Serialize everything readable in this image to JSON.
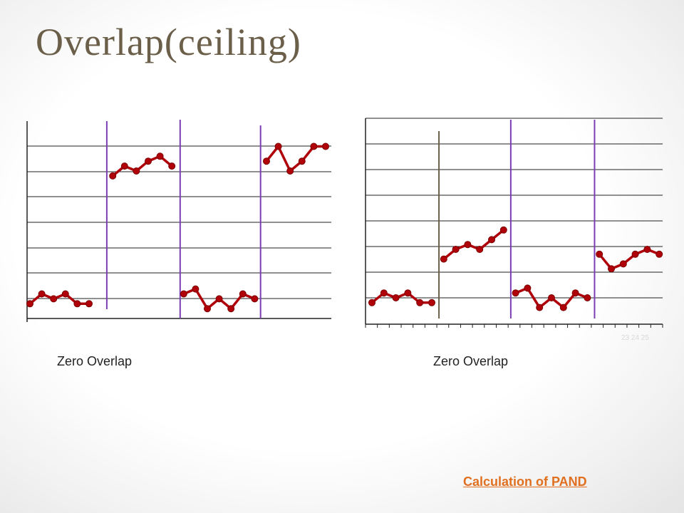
{
  "slide": {
    "title": "Overlap(ceiling)"
  },
  "colors": {
    "line": "#b0000a",
    "marker": "#b0000a",
    "divider": "#7a3fb5",
    "divider_alt": "#6b5f4a",
    "grid": "#222222",
    "link": "#e07020"
  },
  "captions": {
    "left": "Zero Overlap",
    "right": "Zero Overlap"
  },
  "link": {
    "label": "Calculation of  PAND"
  },
  "right_chart_faint_labels": "23 24 25",
  "chart_data": [
    {
      "type": "line",
      "title": "",
      "xlabel": "",
      "ylabel": "",
      "grid": true,
      "ylim": [
        0,
        8
      ],
      "segments": [
        {
          "x": [
            1,
            2,
            3,
            4,
            5,
            6
          ],
          "y": [
            0.6,
            1.0,
            0.8,
            1.0,
            0.6,
            0.6
          ]
        },
        {
          "x": [
            8,
            9,
            10,
            11,
            12,
            13
          ],
          "y": [
            5.8,
            6.2,
            6.0,
            6.4,
            6.6,
            6.2
          ]
        },
        {
          "x": [
            14,
            15,
            16,
            17,
            18,
            19,
            20
          ],
          "y": [
            1.0,
            1.2,
            0.4,
            0.8,
            0.4,
            1.0,
            0.8
          ]
        },
        {
          "x": [
            21,
            22,
            23,
            24,
            25,
            26
          ],
          "y": [
            6.4,
            7.0,
            6.0,
            6.4,
            7.0,
            7.0
          ]
        }
      ],
      "dividers_x": [
        7.5,
        13.7,
        20.5
      ]
    },
    {
      "type": "line",
      "title": "",
      "xlabel": "",
      "ylabel": "",
      "grid": true,
      "ylim": [
        0,
        8
      ],
      "segments": [
        {
          "x": [
            1,
            2,
            3,
            4,
            5,
            6
          ],
          "y": [
            0.8,
            1.2,
            1.0,
            1.2,
            0.8,
            0.8
          ]
        },
        {
          "x": [
            7,
            8,
            9,
            10,
            11,
            12
          ],
          "y": [
            2.6,
            3.0,
            3.2,
            3.0,
            3.4,
            3.8
          ]
        },
        {
          "x": [
            13,
            14,
            15,
            16,
            17,
            18,
            19
          ],
          "y": [
            1.2,
            1.4,
            0.6,
            1.0,
            0.6,
            1.2,
            1.0
          ]
        },
        {
          "x": [
            20,
            21,
            22,
            23,
            24,
            25
          ],
          "y": [
            2.8,
            2.2,
            2.4,
            2.8,
            3.0,
            2.8
          ]
        }
      ],
      "dividers_x": [
        6.6,
        12.6,
        19.6
      ]
    }
  ]
}
